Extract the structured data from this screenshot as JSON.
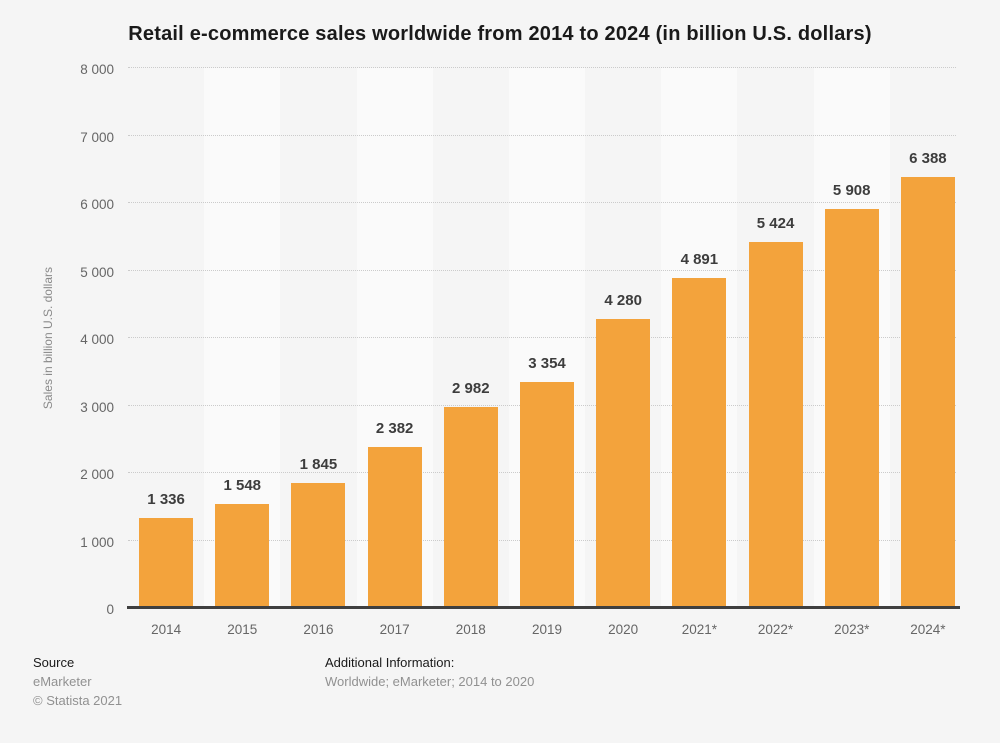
{
  "chart_data": {
    "type": "bar",
    "title": "Retail e-commerce sales worldwide from 2014 to 2024 (in billion U.S. dollars)",
    "ylabel": "Sales in billion U.S. dollars",
    "xlabel": "",
    "categories": [
      "2014",
      "2015",
      "2016",
      "2017",
      "2018",
      "2019",
      "2020",
      "2021*",
      "2022*",
      "2023*",
      "2024*"
    ],
    "values": [
      1336,
      1548,
      1845,
      2382,
      2982,
      3354,
      4280,
      4891,
      5424,
      5908,
      6388
    ],
    "value_labels": [
      "1 336",
      "1 548",
      "1 845",
      "2 382",
      "2 982",
      "3 354",
      "4 280",
      "4 891",
      "5 424",
      "5 908",
      "6 388"
    ],
    "ylim": [
      0,
      8000
    ],
    "ytick_interval": 1000,
    "ytick_labels": [
      "0",
      "1 000",
      "2 000",
      "3 000",
      "4 000",
      "5 000",
      "6 000",
      "7 000",
      "8 000"
    ],
    "grid": "horizontal-dotted",
    "legend": "none",
    "bar_color": "#f3a33c",
    "stripe_color": "#fafafa",
    "background_color": "#f5f5f5",
    "axis_line_color": "#3f3f3f"
  },
  "footer": {
    "source_label": "Source",
    "source_value": "eMarketer",
    "copyright": "© Statista 2021",
    "additional_label": "Additional Information:",
    "additional_value": "Worldwide; eMarketer; 2014 to 2020"
  }
}
